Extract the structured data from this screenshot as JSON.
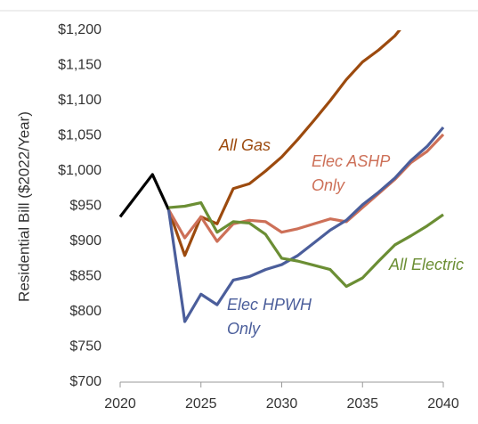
{
  "chart_data": {
    "type": "line",
    "y_label": "Residential Bill ($2022/Year)",
    "xlim": [
      2020,
      2040
    ],
    "xticks": [
      2020,
      2025,
      2030,
      2035,
      2040
    ],
    "ylim": [
      700,
      1200
    ],
    "yticks": [
      {
        "value": 700,
        "label": "$700"
      },
      {
        "value": 750,
        "label": "$750"
      },
      {
        "value": 800,
        "label": "$800"
      },
      {
        "value": 850,
        "label": "$850"
      },
      {
        "value": 900,
        "label": "$900"
      },
      {
        "value": 950,
        "label": "$950"
      },
      {
        "value": 1000,
        "label": "$1,000"
      },
      {
        "value": 1050,
        "label": "$1,050"
      },
      {
        "value": 1100,
        "label": "$1,100"
      },
      {
        "value": 1150,
        "label": "$1,150"
      },
      {
        "value": 1200,
        "label": "$1,200"
      }
    ],
    "series": [
      {
        "color": "#000000",
        "x": [
          2020,
          2022,
          2023
        ],
        "values": [
          935,
          995,
          945
        ]
      },
      {
        "name": "All Gas",
        "color": "#9c4a0e",
        "x": [
          2023,
          2024,
          2025,
          2026,
          2027,
          2028,
          2029,
          2030,
          2031,
          2032,
          2033,
          2034,
          2035,
          2036,
          2037,
          2038
        ],
        "values": [
          945,
          880,
          935,
          925,
          975,
          982,
          1000,
          1020,
          1045,
          1072,
          1100,
          1130,
          1155,
          1172,
          1192,
          1220
        ]
      },
      {
        "name": "Elec ASHP Only",
        "color": "#cd7058",
        "x": [
          2023,
          2024,
          2025,
          2026,
          2027,
          2028,
          2029,
          2030,
          2031,
          2032,
          2033,
          2034,
          2035,
          2036,
          2037,
          2038,
          2039,
          2040
        ],
        "values": [
          945,
          905,
          935,
          900,
          925,
          930,
          928,
          913,
          918,
          925,
          932,
          928,
          948,
          968,
          988,
          1012,
          1028,
          1052
        ]
      },
      {
        "name": "Elec HPWH Only",
        "color": "#4b5e9b",
        "x": [
          2023,
          2024,
          2025,
          2026,
          2027,
          2028,
          2029,
          2030,
          2031,
          2032,
          2033,
          2034,
          2035,
          2036,
          2037,
          2038,
          2039,
          2040
        ],
        "values": [
          945,
          786,
          825,
          810,
          845,
          850,
          860,
          867,
          880,
          898,
          916,
          930,
          952,
          970,
          990,
          1015,
          1035,
          1062
        ]
      },
      {
        "name": "All Electric",
        "color": "#6b8e34",
        "x": [
          2023,
          2024,
          2025,
          2026,
          2027,
          2028,
          2029,
          2030,
          2031,
          2032,
          2033,
          2034,
          2035,
          2036,
          2037,
          2038,
          2039,
          2040
        ],
        "values": [
          948,
          950,
          955,
          913,
          928,
          926,
          910,
          876,
          872,
          866,
          860,
          836,
          848,
          872,
          895,
          908,
          922,
          938
        ]
      }
    ]
  }
}
